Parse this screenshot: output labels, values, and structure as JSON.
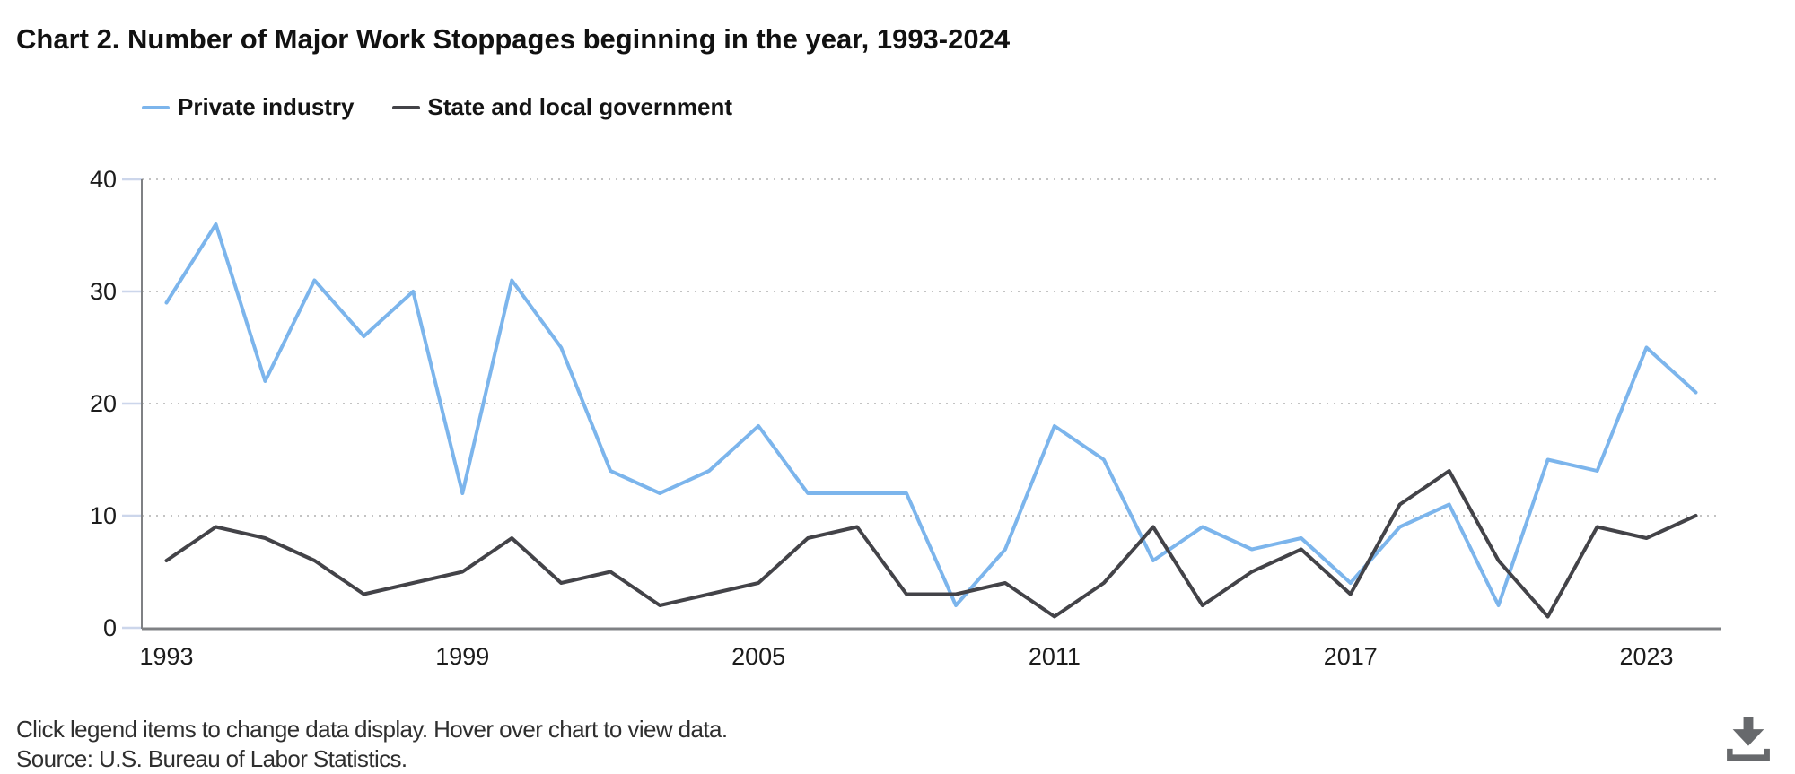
{
  "page": {
    "title": "Chart 2. Number of Major Work Stoppages beginning in the year, 1993-2024"
  },
  "chart_data": {
    "type": "line",
    "title": "Chart 2. Number of Major Work Stoppages beginning in the year, 1993-2024",
    "x": [
      1993,
      1994,
      1995,
      1996,
      1997,
      1998,
      1999,
      2000,
      2001,
      2002,
      2003,
      2004,
      2005,
      2006,
      2007,
      2008,
      2009,
      2010,
      2011,
      2012,
      2013,
      2014,
      2015,
      2016,
      2017,
      2018,
      2019,
      2020,
      2021,
      2022,
      2023,
      2024
    ],
    "x_tick_labels": [
      "1993",
      "1999",
      "2005",
      "2011",
      "2017",
      "2023"
    ],
    "y_ticks": [
      0,
      10,
      20,
      30,
      40
    ],
    "ylim": [
      0,
      40
    ],
    "xlabel": "",
    "ylabel": "",
    "grid": "dotted-horizontal",
    "legend_position": "top-left",
    "series": [
      {
        "name": "Private industry",
        "color": "#7cb5ec",
        "values": [
          29,
          36,
          22,
          31,
          26,
          30,
          12,
          31,
          25,
          14,
          12,
          14,
          18,
          12,
          12,
          12,
          2,
          7,
          18,
          15,
          6,
          9,
          7,
          8,
          4,
          9,
          11,
          2,
          15,
          14,
          25,
          21
        ]
      },
      {
        "name": "State and local government",
        "color": "#434348",
        "values": [
          6,
          9,
          8,
          6,
          3,
          4,
          5,
          8,
          4,
          5,
          2,
          3,
          4,
          8,
          9,
          3,
          3,
          4,
          1,
          4,
          9,
          2,
          5,
          7,
          3,
          11,
          14,
          6,
          1,
          9,
          8,
          10
        ]
      }
    ]
  },
  "footer": {
    "note": "Click legend items to change data display. Hover over chart to view data.",
    "source": "Source: U.S. Bureau of Labor Statistics."
  },
  "download": {
    "icon": "download-icon"
  },
  "colors": {
    "axis_line": "#7f8184",
    "tick": "#ccd6eb",
    "gridline": "#c3c3c3",
    "axis_label": "#1c1c1c",
    "title_text": "#111111",
    "footer_text": "#2f2f2f",
    "download_icon": "#67696c",
    "background": "#ffffff"
  }
}
